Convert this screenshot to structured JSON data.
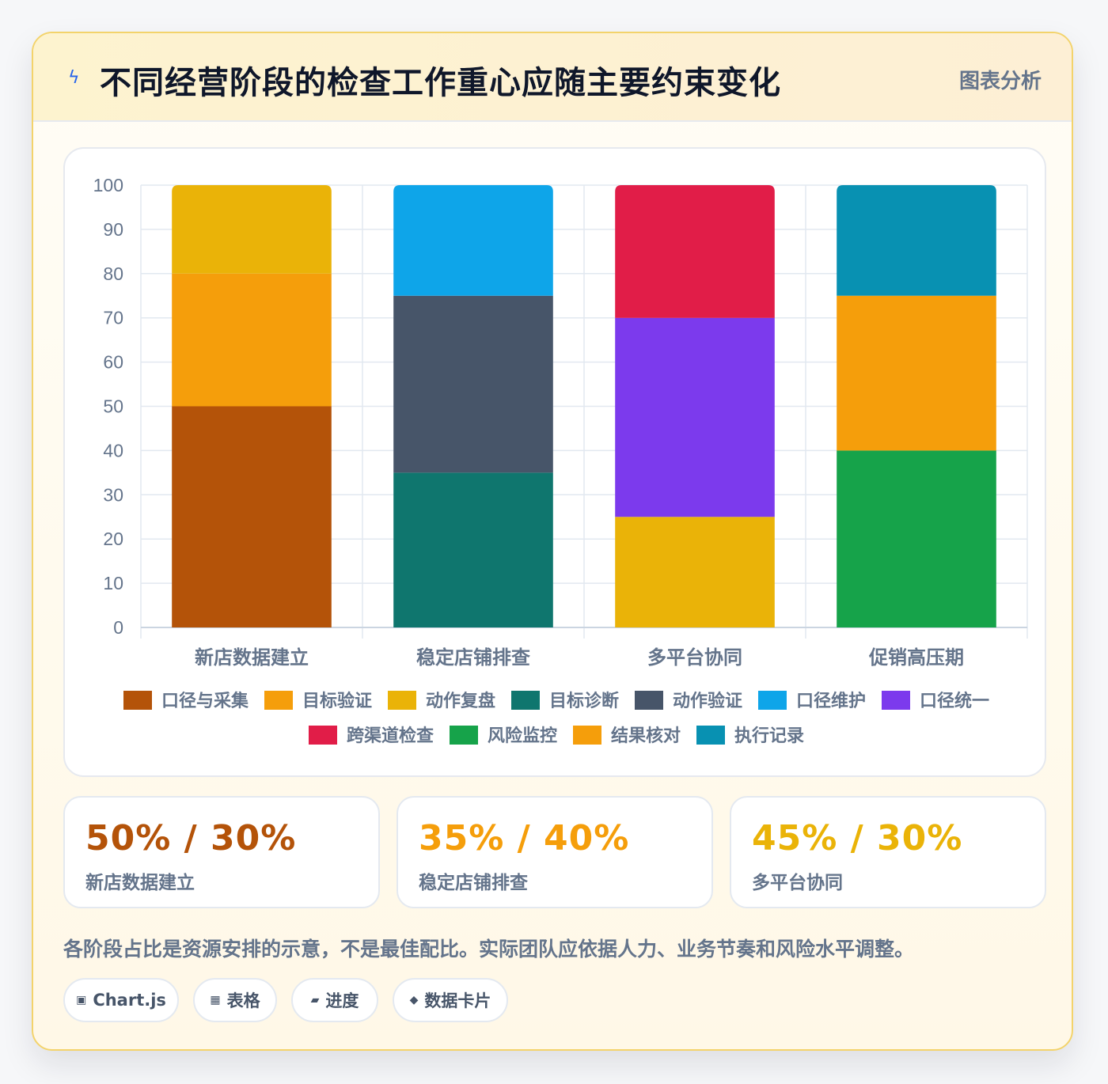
{
  "header": {
    "title": "不同经营阶段的检查工作重心应随主要约束变化",
    "tag": "图表分析",
    "icon": "lightning-icon"
  },
  "chart_data": {
    "type": "bar",
    "stacked": true,
    "categories": [
      "新店数据建立",
      "稳定店铺排查",
      "多平台协同",
      "促销高压期"
    ],
    "ylim": [
      0,
      100
    ],
    "yticks": [
      0,
      10,
      20,
      30,
      40,
      50,
      60,
      70,
      80,
      90,
      100
    ],
    "grid": true,
    "legend_position": "bottom",
    "series": [
      {
        "name": "口径与采集",
        "color": "#b45309",
        "values": [
          50,
          null,
          null,
          null
        ]
      },
      {
        "name": "目标验证",
        "color": "#f59e0b",
        "values": [
          30,
          null,
          null,
          null
        ]
      },
      {
        "name": "动作复盘",
        "color": "#eab308",
        "values": [
          20,
          null,
          25,
          null
        ]
      },
      {
        "name": "目标诊断",
        "color": "#0f766e",
        "values": [
          null,
          35,
          null,
          null
        ]
      },
      {
        "name": "动作验证",
        "color": "#475569",
        "values": [
          null,
          40,
          null,
          null
        ]
      },
      {
        "name": "口径维护",
        "color": "#0ea5e9",
        "values": [
          null,
          25,
          null,
          null
        ]
      },
      {
        "name": "口径统一",
        "color": "#7c3aed",
        "values": [
          null,
          null,
          45,
          null
        ]
      },
      {
        "name": "跨渠道检查",
        "color": "#e11d48",
        "values": [
          null,
          null,
          30,
          null
        ]
      },
      {
        "name": "风险监控",
        "color": "#16a34a",
        "values": [
          null,
          null,
          null,
          40
        ]
      },
      {
        "name": "结果核对",
        "color": "#f59e0b",
        "values": [
          null,
          null,
          null,
          35
        ]
      },
      {
        "name": "执行记录",
        "color": "#0891b2",
        "values": [
          null,
          null,
          null,
          25
        ]
      }
    ]
  },
  "kpis": [
    {
      "value": "50% / 30%",
      "label": "新店数据建立",
      "color": "#b45309"
    },
    {
      "value": "35% / 40%",
      "label": "稳定店铺排查",
      "color": "#f59e0b"
    },
    {
      "value": "45% / 30%",
      "label": "多平台协同",
      "color": "#eab308"
    }
  ],
  "note": "各阶段占比是资源安排的示意，不是最佳配比。实际团队应依据人力、业务节奏和风险水平调整。",
  "pills": [
    {
      "label": "Chart.js",
      "icon": "square-icon",
      "glyph": "▣"
    },
    {
      "label": "表格",
      "icon": "grid-icon",
      "glyph": "▦"
    },
    {
      "label": "进度",
      "icon": "progress-icon",
      "glyph": "▰"
    },
    {
      "label": "数据卡片",
      "icon": "diamond-icon",
      "glyph": "◆"
    }
  ]
}
